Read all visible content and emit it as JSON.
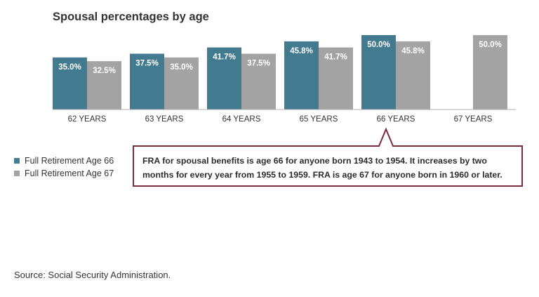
{
  "title": "Spousal percentages by age",
  "chart_data": {
    "type": "bar",
    "title": "Spousal percentages by age",
    "categories": [
      "62 YEARS",
      "63 YEARS",
      "64 YEARS",
      "65 YEARS",
      "66 YEARS",
      "67 YEARS"
    ],
    "series": [
      {
        "name": "Full Retirement Age 66",
        "color": "#427a8f",
        "values": [
          35.0,
          37.5,
          41.7,
          45.8,
          50.0,
          null
        ],
        "labels": [
          "35.0%",
          "37.5%",
          "41.7%",
          "45.8%",
          "50.0%",
          null
        ]
      },
      {
        "name": "Full Retirement Age 67",
        "color": "#a3a3a3",
        "values": [
          32.5,
          35.0,
          37.5,
          41.7,
          45.8,
          50.0
        ],
        "labels": [
          "32.5%",
          "35.0%",
          "37.5%",
          "41.7%",
          "45.8%",
          "50.0%"
        ]
      }
    ],
    "ylim": [
      0,
      50
    ],
    "grid": false,
    "legend_position": "bottom-left"
  },
  "legend": [
    {
      "label": "Full Retirement Age 66",
      "color": "#427a8f"
    },
    {
      "label": "Full Retirement Age 67",
      "color": "#a3a3a3"
    }
  ],
  "callout": {
    "text": "FRA for spousal benefits is age 66 for anyone born 1943 to 1954. It increases by two months for every year from 1955 to 1959. FRA is age 67 for anyone born in 1960 or later.",
    "border_color": "#7a2b3c"
  },
  "source": "Source: Social Security Administration."
}
